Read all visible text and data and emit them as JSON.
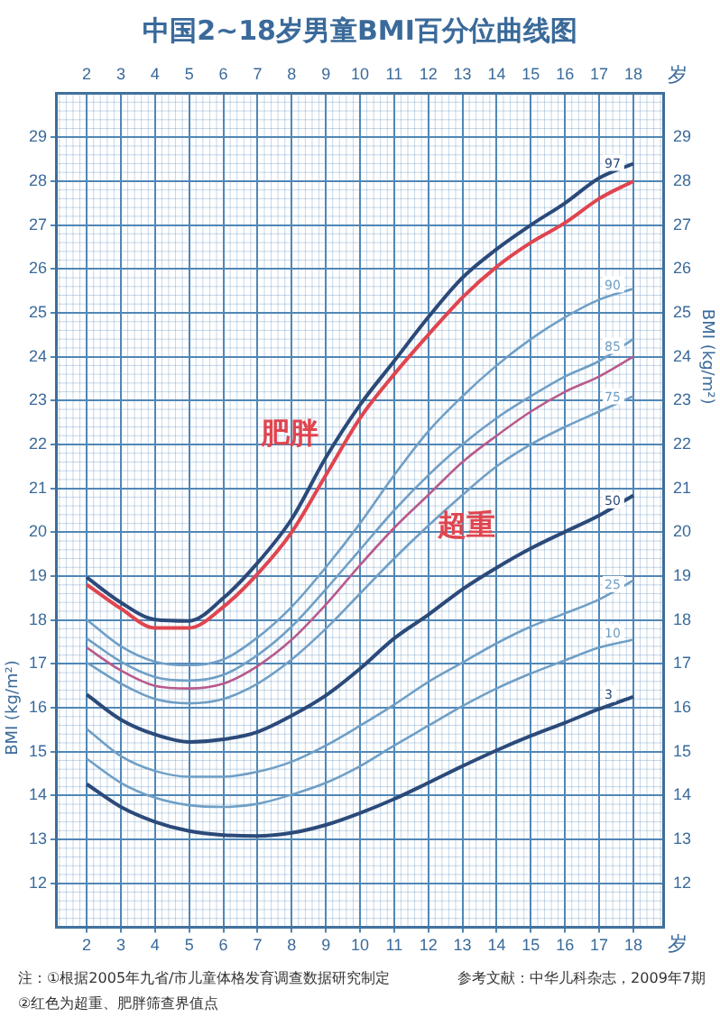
{
  "chart_data": {
    "type": "line",
    "title": "中国2~18岁男童BMI百分位曲线图",
    "xlabel": "岁",
    "x2label": "岁",
    "ylabel": "BMI (kg/m²)",
    "y2label": "BMI (kg/m²)",
    "x": [
      2,
      3,
      4,
      5,
      6,
      7,
      8,
      9,
      10,
      11,
      12,
      13,
      14,
      15,
      16,
      17,
      18
    ],
    "xlim": [
      1.1,
      18.9
    ],
    "xticks": [
      2,
      3,
      4,
      5,
      6,
      7,
      8,
      9,
      10,
      11,
      12,
      13,
      14,
      15,
      16,
      17,
      18
    ],
    "x2lim": [
      1.1,
      18.9
    ],
    "x2ticks": [
      2,
      3,
      4,
      5,
      6,
      7,
      8,
      9,
      10,
      11,
      12,
      13,
      14,
      15,
      16,
      17,
      18
    ],
    "ylim": [
      11,
      30
    ],
    "yticks": [
      12,
      13,
      14,
      15,
      16,
      17,
      18,
      19,
      20,
      21,
      22,
      23,
      24,
      25,
      26,
      27,
      28,
      29
    ],
    "y2lim": [
      11,
      30
    ],
    "y2ticks": [
      12,
      13,
      14,
      15,
      16,
      17,
      18,
      19,
      20,
      21,
      22,
      23,
      24,
      25,
      26,
      27,
      28,
      29
    ],
    "grid": true,
    "legend": false,
    "marker": "none",
    "line_style": "solid",
    "series": [
      {
        "name": "3",
        "color": "#2b4a7a",
        "values": [
          14.26,
          13.74,
          13.4,
          13.19,
          13.1,
          13.08,
          13.15,
          13.33,
          13.6,
          13.92,
          14.29,
          14.67,
          15.03,
          15.36,
          15.66,
          15.97,
          16.25
        ]
      },
      {
        "name": "10",
        "color": "#6f9fc6",
        "values": [
          14.84,
          14.29,
          13.95,
          13.78,
          13.74,
          13.81,
          14.02,
          14.29,
          14.67,
          15.14,
          15.59,
          16.04,
          16.44,
          16.78,
          17.08,
          17.37,
          17.55
        ]
      },
      {
        "name": "25",
        "color": "#6f9fc6",
        "values": [
          15.52,
          14.9,
          14.56,
          14.43,
          14.43,
          14.54,
          14.77,
          15.14,
          15.59,
          16.07,
          16.59,
          17.03,
          17.47,
          17.85,
          18.15,
          18.47,
          18.9
        ]
      },
      {
        "name": "50",
        "color": "#2b4a7a",
        "values": [
          16.3,
          15.73,
          15.39,
          15.22,
          15.28,
          15.45,
          15.82,
          16.28,
          16.89,
          17.58,
          18.12,
          18.7,
          19.19,
          19.63,
          20.01,
          20.38,
          20.84
        ]
      },
      {
        "name": "75",
        "color": "#6f9fc6",
        "values": [
          17.03,
          16.55,
          16.2,
          16.1,
          16.2,
          16.55,
          17.1,
          17.8,
          18.6,
          19.4,
          20.15,
          20.85,
          21.5,
          22.0,
          22.4,
          22.75,
          23.1
        ]
      },
      {
        "color": "#b85a8c",
        "values": [
          17.37,
          16.85,
          16.5,
          16.44,
          16.55,
          16.95,
          17.55,
          18.35,
          19.25,
          20.1,
          20.85,
          21.6,
          22.2,
          22.75,
          23.2,
          23.55,
          24.0
        ]
      },
      {
        "name": "85",
        "color": "#6f9fc6",
        "values": [
          17.58,
          17.05,
          16.7,
          16.62,
          16.75,
          17.2,
          17.85,
          18.7,
          19.6,
          20.5,
          21.3,
          22.0,
          22.6,
          23.1,
          23.55,
          23.9,
          24.4
        ]
      },
      {
        "name": "90",
        "color": "#6f9fc6",
        "values": [
          18.01,
          17.4,
          17.05,
          16.97,
          17.1,
          17.6,
          18.3,
          19.2,
          20.2,
          21.3,
          22.3,
          23.1,
          23.8,
          24.4,
          24.9,
          25.3,
          25.55
        ]
      },
      {
        "color": "#e0454f",
        "values": [
          18.81,
          18.26,
          17.82,
          17.82,
          18.3,
          19.05,
          20.0,
          21.3,
          22.6,
          23.6,
          24.5,
          25.35,
          26.05,
          26.6,
          27.05,
          27.6,
          28.0
        ]
      },
      {
        "name": "97",
        "color": "#2b4a7a",
        "values": [
          18.97,
          18.4,
          18.01,
          17.98,
          18.5,
          19.3,
          20.3,
          21.7,
          22.9,
          23.9,
          24.9,
          25.8,
          26.45,
          27.0,
          27.5,
          28.07,
          28.4
        ]
      }
    ],
    "annotations": [
      "肥胖",
      "超重",
      "注：①根据2005年九省/市儿童体格发育调查数据研究制定",
      "②红色为超重、肥胖筛查界值点",
      "参考文献：中华儿科杂志，2009年7期"
    ]
  }
}
